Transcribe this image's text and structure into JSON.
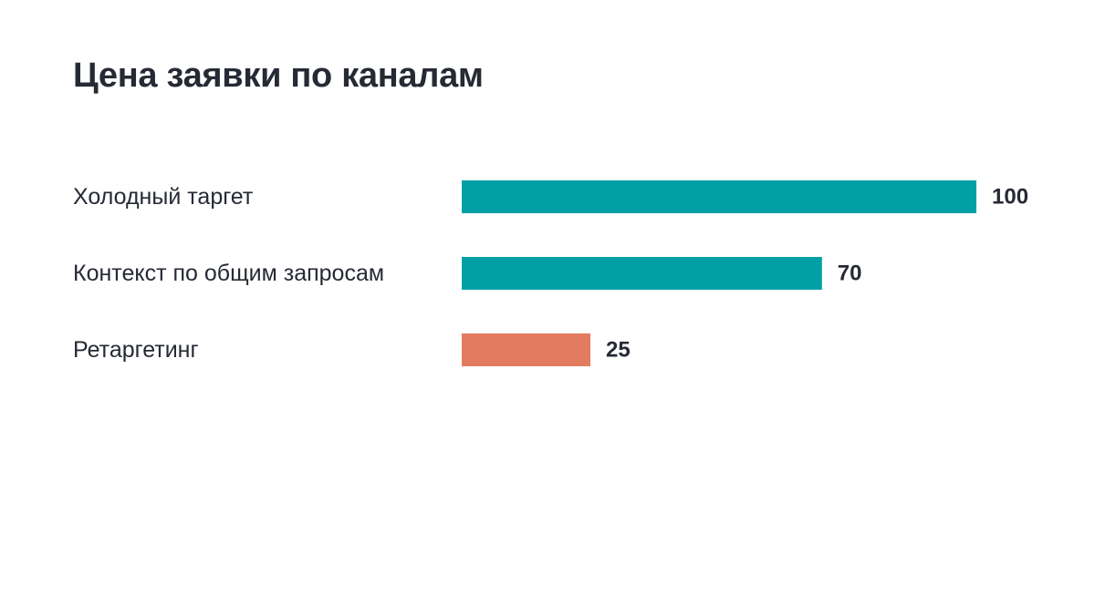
{
  "chart_data": {
    "type": "bar",
    "orientation": "horizontal",
    "title": "Цена заявки по каналам",
    "categories": [
      "Холодный таргет",
      "Контекст по общим запросам",
      "Ретаргетинг"
    ],
    "values": [
      100,
      70,
      25
    ],
    "value_labels": [
      "100",
      "70",
      "25"
    ],
    "colors": [
      "#00a0a6",
      "#00a0a6",
      "#e27b5f"
    ],
    "xlim": [
      0,
      100
    ],
    "grid": false,
    "axes_visible": false
  }
}
